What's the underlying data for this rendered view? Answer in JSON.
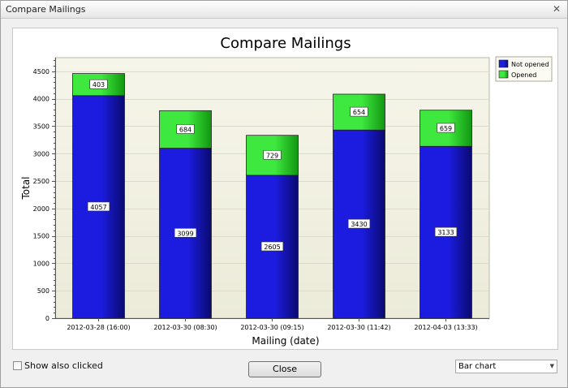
{
  "window": {
    "title": "Compare Mailings",
    "close_glyph": "✕"
  },
  "chart_data": {
    "type": "bar",
    "stacked": true,
    "title": "Compare Mailings",
    "xlabel": "Mailing (date)",
    "ylabel": "Total",
    "ylim": [
      0,
      4750
    ],
    "yticks": [
      0,
      500,
      1000,
      1500,
      2000,
      2500,
      3000,
      3500,
      4000,
      4500
    ],
    "grid": true,
    "legend_position": "top-right",
    "categories": [
      "2012-03-28 (16:00)",
      "2012-03-30 (08:30)",
      "2012-03-30 (09:15)",
      "2012-03-30 (11:42)",
      "2012-04-03 (13:33)"
    ],
    "series": [
      {
        "name": "Not opened",
        "values": [
          4057,
          3099,
          2605,
          3430,
          3133
        ],
        "color": "#1c1ce0",
        "color_dark": "#0a0a70"
      },
      {
        "name": "Opened",
        "values": [
          403,
          684,
          729,
          654,
          659
        ],
        "color": "#3ee83e",
        "color_dark": "#119611"
      }
    ]
  },
  "footer": {
    "show_clicked_label": "Show also clicked",
    "close_label": "Close",
    "chart_type_value": "Bar chart"
  }
}
